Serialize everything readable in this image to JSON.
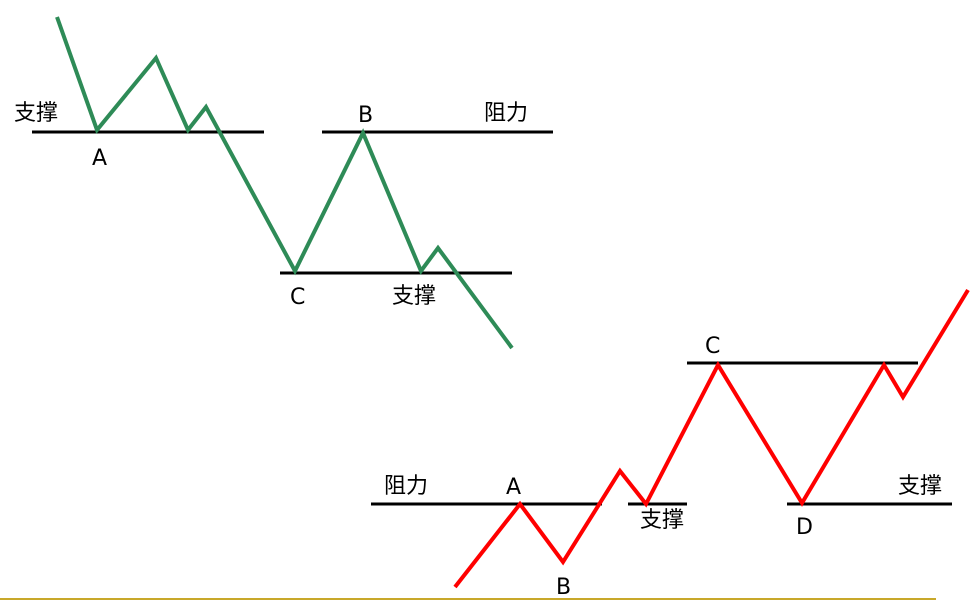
{
  "colors": {
    "background": "#ffffff",
    "down_line": "#2e8b57",
    "up_line": "#ff0000",
    "level_line": "#000000",
    "bottom_rule": "#c8a82a"
  },
  "top_diagram": {
    "support_label": "支撑",
    "resistance_label": "阻力",
    "point_a": "A",
    "point_b": "B",
    "point_c": "C",
    "support_label_2": "支撑"
  },
  "bottom_diagram": {
    "resistance_label": "阻力",
    "point_a": "A",
    "point_b": "B",
    "support_label": "支撑",
    "point_c": "C",
    "point_d": "D",
    "support_label_2": "支撑"
  }
}
